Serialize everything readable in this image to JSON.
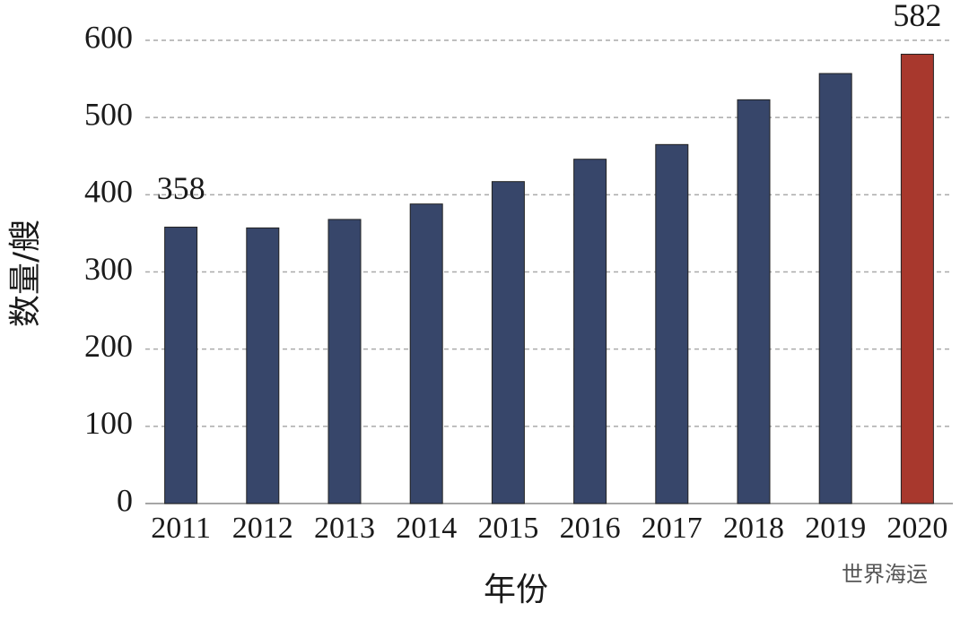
{
  "chart_data": {
    "type": "bar",
    "x_label": "年份",
    "y_label": "数量/艘",
    "categories": [
      "2011",
      "2012",
      "2013",
      "2014",
      "2015",
      "2016",
      "2017",
      "2018",
      "2019",
      "2020"
    ],
    "series": [
      {
        "values": [
          358,
          357,
          368,
          388,
          417,
          446,
          465,
          523,
          557,
          582
        ],
        "value_labels": [
          "358",
          null,
          null,
          null,
          null,
          null,
          null,
          null,
          null,
          "582"
        ],
        "colors": [
          "#37466a",
          "#37466a",
          "#37466a",
          "#37466a",
          "#37466a",
          "#37466a",
          "#37466a",
          "#37466a",
          "#37466a",
          "#a8382d"
        ]
      }
    ],
    "ylim": [
      0,
      600
    ],
    "yticks": [
      0,
      100,
      200,
      300,
      400,
      500,
      600
    ],
    "grid": true,
    "watermark": "世界海运"
  }
}
